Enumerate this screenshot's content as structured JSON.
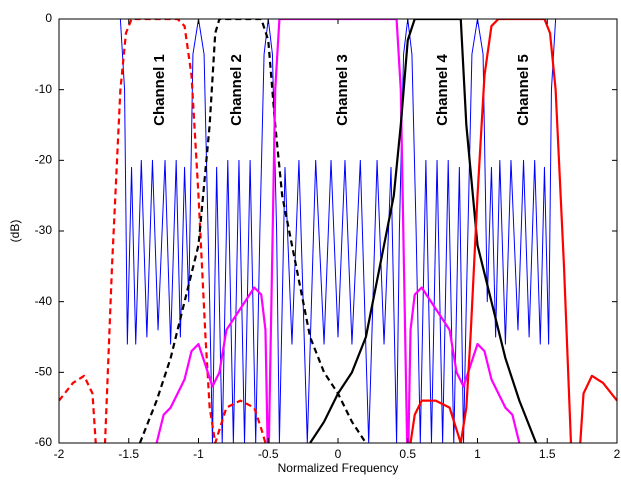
{
  "chart_data": {
    "type": "line",
    "xlabel": "Normalized Frequency",
    "ylabel": "(dB)",
    "annotations": [
      "Channel 1",
      "Channel 2",
      "Channel 3",
      "Channel 4",
      "Channel 5"
    ],
    "xlim": [
      -2,
      2
    ],
    "ylim": [
      -60,
      0
    ],
    "xticks": [
      -2,
      -1.5,
      -1,
      -0.5,
      0,
      0.5,
      1,
      1.5,
      2
    ],
    "yticks": [
      -60,
      -50,
      -40,
      -30,
      -20,
      -10,
      0
    ],
    "series": [
      {
        "color": "#0000ff",
        "linestyle": "solid",
        "linewidth": 1,
        "x": [
          -2,
          -1.56,
          -1.53,
          -1.51,
          -1.48,
          -1.45,
          -1.41,
          -1.37,
          -1.33,
          -1.29,
          -1.24,
          -1.2,
          -1.16,
          -1.13,
          -1.1,
          -1.07,
          -1.04,
          -1.0,
          -0.96,
          -0.92,
          -0.9,
          -0.87,
          -0.83,
          -0.79,
          -0.75,
          -0.71,
          -0.67,
          -0.63,
          -0.59,
          -0.56,
          -0.53,
          -0.5,
          -0.47,
          -0.44,
          -0.42,
          -0.38,
          -0.33,
          -0.28,
          -0.22,
          -0.16,
          -0.1,
          -0.05,
          0,
          0.05,
          0.1,
          0.16,
          0.22,
          0.28,
          0.33,
          0.38,
          0.42,
          0.44,
          0.47,
          0.5,
          0.53,
          0.56,
          0.59,
          0.63,
          0.67,
          0.71,
          0.75,
          0.79,
          0.83,
          0.87,
          0.9,
          0.92,
          0.96,
          1.0,
          1.04,
          1.07,
          1.1,
          1.13,
          1.16,
          1.2,
          1.24,
          1.29,
          1.33,
          1.37,
          1.41,
          1.45,
          1.48,
          1.51,
          1.53,
          1.56,
          2
        ],
        "values": [
          0,
          0,
          -10,
          -46,
          -21,
          -46,
          -20,
          -45,
          -20,
          -44,
          -20,
          -46,
          -20,
          -45,
          -21,
          -40,
          -5,
          0,
          -5,
          -40,
          -60,
          -21,
          -60,
          -20,
          -60,
          -20,
          -60,
          -20,
          -60,
          -30,
          -5,
          0,
          -5,
          -30,
          -60,
          -21,
          -46,
          -20,
          -60,
          -20,
          -46,
          -20,
          -45,
          -20,
          -46,
          -20,
          -60,
          -20,
          -46,
          -21,
          -60,
          -30,
          -5,
          0,
          -5,
          -30,
          -60,
          -20,
          -60,
          -20,
          -60,
          -20,
          -60,
          -21,
          -60,
          -40,
          -5,
          0,
          -5,
          -40,
          -21,
          -45,
          -20,
          -46,
          -20,
          -44,
          -20,
          -45,
          -20,
          -46,
          -21,
          -46,
          -10,
          0,
          0
        ]
      },
      {
        "color": "#ff0000",
        "linestyle": "dashed",
        "linewidth": 2.2,
        "x": [
          -2,
          -1.9,
          -1.82,
          -1.76,
          -1.72,
          -1.68,
          -1.62,
          -1.56,
          -1.52,
          -1.48,
          -1.3,
          -1.15,
          -1.1,
          -1.05,
          -1.0,
          -0.95,
          -0.92,
          -0.88,
          -0.8,
          -0.7,
          -0.6,
          -0.55,
          -0.52
        ],
        "values": [
          -54,
          -51.5,
          -50.5,
          -53,
          -65,
          -65,
          -35,
          -10,
          -2,
          0,
          0,
          0,
          -1,
          -8,
          -25,
          -45,
          -55,
          -60,
          -55,
          -54,
          -55,
          -58,
          -60
        ]
      },
      {
        "color": "#000000",
        "linestyle": "dashed",
        "linewidth": 2.2,
        "x": [
          -1.42,
          -1.3,
          -1.2,
          -1.1,
          -1.0,
          -0.92,
          -0.88,
          -0.85,
          -0.55,
          -0.5,
          -0.45,
          -0.4,
          -0.3,
          -0.2,
          -0.1,
          0,
          0.1,
          0.2
        ],
        "values": [
          -60,
          -54,
          -48,
          -40,
          -32,
          -15,
          -2,
          0,
          0,
          -3,
          -15,
          -25,
          -35,
          -45,
          -50,
          -53,
          -57,
          -60
        ]
      },
      {
        "color": "#ff00ff",
        "linestyle": "solid",
        "linewidth": 2.2,
        "x": [
          -1.3,
          -1.25,
          -1.2,
          -1.1,
          -1.05,
          -1.0,
          -0.95,
          -0.9,
          -0.85,
          -0.8,
          -0.7,
          -0.6,
          -0.55,
          -0.52,
          -0.5,
          -0.45,
          -0.42,
          0.42,
          0.45,
          0.5,
          0.52,
          0.55,
          0.6,
          0.7,
          0.8,
          0.85,
          0.9,
          0.95,
          1.0,
          1.05,
          1.1,
          1.2,
          1.25,
          1.3
        ],
        "values": [
          -60,
          -56,
          -55,
          -51,
          -47,
          -46,
          -49,
          -52,
          -50,
          -44,
          -41,
          -38,
          -39,
          -44,
          -65,
          -10,
          0,
          0,
          -10,
          -65,
          -44,
          -39,
          -38,
          -41,
          -44,
          -50,
          -52,
          -49,
          -46,
          -47,
          -51,
          -55,
          -56,
          -60
        ]
      },
      {
        "color": "#000000",
        "linestyle": "solid",
        "linewidth": 2.2,
        "x": [
          -0.2,
          -0.1,
          0,
          0.1,
          0.2,
          0.3,
          0.4,
          0.45,
          0.5,
          0.55,
          0.88,
          0.92,
          1.0,
          1.1,
          1.2,
          1.3,
          1.42
        ],
        "values": [
          -60,
          -57,
          -53,
          -50,
          -45,
          -35,
          -25,
          -15,
          -3,
          0,
          0,
          -15,
          -32,
          -40,
          -48,
          -54,
          -60
        ]
      },
      {
        "color": "#ff0000",
        "linestyle": "solid",
        "linewidth": 2.2,
        "x": [
          0.52,
          0.55,
          0.6,
          0.7,
          0.8,
          0.88,
          0.92,
          0.95,
          1.0,
          1.05,
          1.1,
          1.15,
          1.48,
          1.52,
          1.56,
          1.62,
          1.68,
          1.72,
          1.76,
          1.82,
          1.9,
          2
        ],
        "values": [
          -60,
          -56,
          -54,
          -54,
          -55,
          -60,
          -55,
          -45,
          -25,
          -8,
          -1,
          0,
          0,
          -2,
          -10,
          -35,
          -65,
          -65,
          -53,
          -50.5,
          -51.5,
          -54
        ]
      }
    ]
  }
}
